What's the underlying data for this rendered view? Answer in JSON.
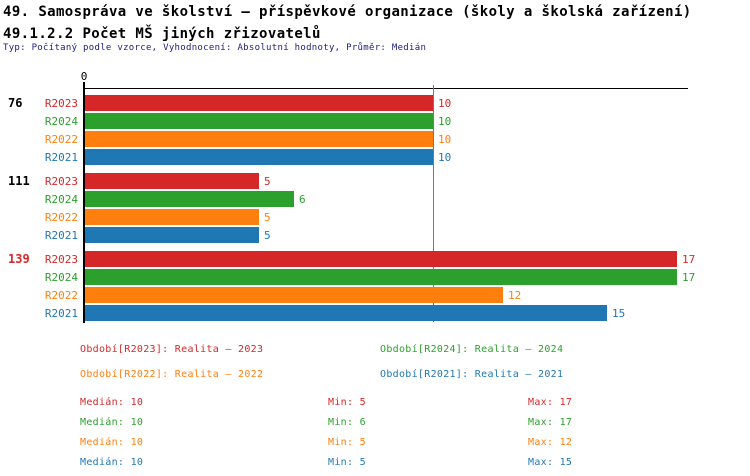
{
  "title": {
    "line1": "49. Samospráva ve školství – příspěvkové organizace (školy a školská zařízení)",
    "line2": "49.1.2.2 Počet MŠ jiných zřizovatelů"
  },
  "subtitle": "Typ: Počítaný podle vzorce, Vyhodnocení: Absolutní hodnoty, Průměr: Medián",
  "colors": {
    "r2023": "#d62728",
    "r2024": "#2ca02c",
    "r2022": "#ff7f0e",
    "r2021": "#1f77b4",
    "median_line": "#3d87c2",
    "axis": "#000000",
    "subtitle_text": "#202080",
    "group_label_normal": "#000000",
    "group_label_alert": "#d62728"
  },
  "chart_data": {
    "type": "bar",
    "orientation": "horizontal",
    "title": "49.1.2.2 Počet MŠ jiných zřizovatelů",
    "categories": [
      "76",
      "111",
      "139"
    ],
    "category_colors": [
      "#000000",
      "#000000",
      "#d62728"
    ],
    "series": [
      {
        "name": "R2023",
        "color": "#d62728",
        "values": [
          10,
          5,
          17
        ]
      },
      {
        "name": "R2024",
        "color": "#2ca02c",
        "values": [
          10,
          6,
          17
        ]
      },
      {
        "name": "R2022",
        "color": "#ff7f0e",
        "values": [
          10,
          5,
          12
        ]
      },
      {
        "name": "R2021",
        "color": "#1f77b4",
        "values": [
          10,
          5,
          15
        ]
      }
    ],
    "x_axis": {
      "zero_label": "0",
      "min": 0,
      "max": 17.3,
      "median_line_value": 10
    },
    "grid": false,
    "legend_position": "bottom"
  },
  "legend": {
    "items": [
      {
        "label": "Období[R2023]: Realita – 2023",
        "color": "#d62728"
      },
      {
        "label": "Období[R2024]: Realita – 2024",
        "color": "#2ca02c"
      },
      {
        "label": "Období[R2022]: Realita – 2022",
        "color": "#ff7f0e"
      },
      {
        "label": "Období[R2021]: Realita – 2021",
        "color": "#1f77b4"
      }
    ]
  },
  "stats": {
    "rows": [
      {
        "median": "Medián: 10",
        "min": "Min: 5",
        "max": "Max: 17",
        "color": "#d62728"
      },
      {
        "median": "Medián: 10",
        "min": "Min: 6",
        "max": "Max: 17",
        "color": "#2ca02c"
      },
      {
        "median": "Medián: 10",
        "min": "Min: 5",
        "max": "Max: 12",
        "color": "#ff7f0e"
      },
      {
        "median": "Medián: 10",
        "min": "Min: 5",
        "max": "Max: 15",
        "color": "#1f77b4"
      }
    ]
  }
}
